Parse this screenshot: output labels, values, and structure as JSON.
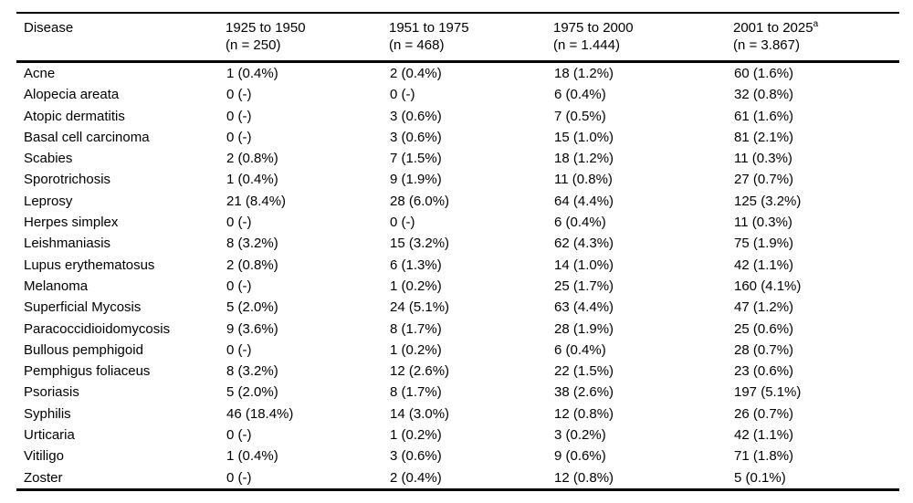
{
  "page": {
    "background_color": "#ffffff",
    "text_color": "#000000",
    "rule_color": "#000000"
  },
  "table": {
    "header": {
      "disease_label": "Disease",
      "periods": [
        {
          "label": "1925 to 1950",
          "sup": "",
          "n": "(n = 250)"
        },
        {
          "label": "1951 to 1975",
          "sup": "",
          "n": "(n = 468)"
        },
        {
          "label": "1975 to 2000",
          "sup": "",
          "n": "(n = 1.444)"
        },
        {
          "label": "2001 to 2025",
          "sup": "a",
          "n": "(n = 3.867)"
        }
      ]
    },
    "rows": [
      {
        "disease": "Acne",
        "values": [
          "1 (0.4%)",
          "2 (0.4%)",
          "18 (1.2%)",
          "60 (1.6%)"
        ]
      },
      {
        "disease": "Alopecia areata",
        "values": [
          "0 (-)",
          "0 (-)",
          "6 (0.4%)",
          "32 (0.8%)"
        ]
      },
      {
        "disease": "Atopic dermatitis",
        "values": [
          "0 (-)",
          "3 (0.6%)",
          "7 (0.5%)",
          "61 (1.6%)"
        ]
      },
      {
        "disease": "Basal cell carcinoma",
        "values": [
          "0 (-)",
          "3 (0.6%)",
          "15 (1.0%)",
          "81 (2.1%)"
        ]
      },
      {
        "disease": "Scabies",
        "values": [
          "2 (0.8%)",
          "7 (1.5%)",
          "18 (1.2%)",
          "11 (0.3%)"
        ]
      },
      {
        "disease": "Sporotrichosis",
        "values": [
          "1 (0.4%)",
          "9 (1.9%)",
          "11 (0.8%)",
          "27 (0.7%)"
        ]
      },
      {
        "disease": "Leprosy",
        "values": [
          "21 (8.4%)",
          "28 (6.0%)",
          "64 (4.4%)",
          "125 (3.2%)"
        ]
      },
      {
        "disease": "Herpes simplex",
        "values": [
          "0 (-)",
          "0 (-)",
          "6 (0.4%)",
          "11 (0.3%)"
        ]
      },
      {
        "disease": "Leishmaniasis",
        "values": [
          "8 (3.2%)",
          "15 (3.2%)",
          "62 (4.3%)",
          "75 (1.9%)"
        ]
      },
      {
        "disease": "Lupus erythematosus",
        "values": [
          "2 (0.8%)",
          "6 (1.3%)",
          "14 (1.0%)",
          "42 (1.1%)"
        ]
      },
      {
        "disease": "Melanoma",
        "values": [
          "0 (-)",
          "1 (0.2%)",
          "25 (1.7%)",
          "160 (4.1%)"
        ]
      },
      {
        "disease": "Superficial Mycosis",
        "values": [
          "5 (2.0%)",
          "24 (5.1%)",
          "63 (4.4%)",
          "47 (1.2%)"
        ]
      },
      {
        "disease": "Paracoccidioidomycosis",
        "values": [
          "9 (3.6%)",
          "8 (1.7%)",
          "28 (1.9%)",
          "25 (0.6%)"
        ]
      },
      {
        "disease": "Bullous pemphigoid",
        "values": [
          "0 (-)",
          "1 (0.2%)",
          "6 (0.4%)",
          "28 (0.7%)"
        ]
      },
      {
        "disease": "Pemphigus foliaceus",
        "values": [
          "8 (3.2%)",
          "12 (2.6%)",
          "22 (1.5%)",
          "23 (0.6%)"
        ]
      },
      {
        "disease": "Psoriasis",
        "values": [
          "5 (2.0%)",
          "8 (1.7%)",
          "38 (2.6%)",
          "197 (5.1%)"
        ]
      },
      {
        "disease": "Syphilis",
        "values": [
          "46 (18.4%)",
          "14 (3.0%)",
          "12 (0.8%)",
          "26 (0.7%)"
        ]
      },
      {
        "disease": "Urticaria",
        "values": [
          "0 (-)",
          "1 (0.2%)",
          "3 (0.2%)",
          "42 (1.1%)"
        ]
      },
      {
        "disease": "Vitiligo",
        "values": [
          "1 (0.4%)",
          "3 (0.6%)",
          "9 (0.6%)",
          "71 (1.8%)"
        ]
      },
      {
        "disease": "Zoster",
        "values": [
          "0 (-)",
          "2 (0.4%)",
          "12 (0.8%)",
          "5 (0.1%)"
        ]
      }
    ]
  }
}
